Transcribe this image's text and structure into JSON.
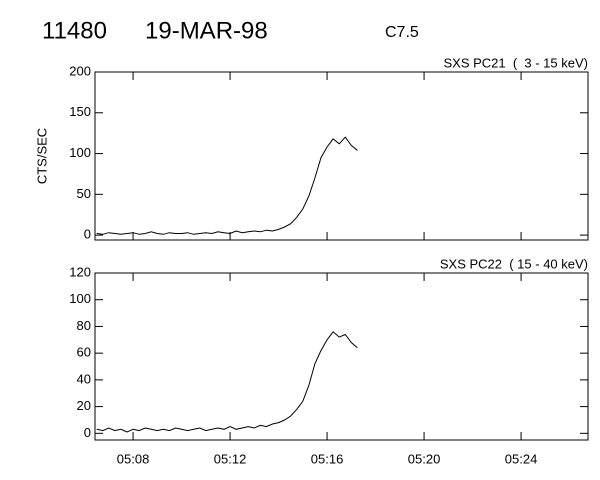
{
  "header": {
    "id": "11480",
    "date": "19-MAR-98",
    "class": "C7.5"
  },
  "chart_data": [
    {
      "type": "line",
      "title": "SXS PC21  (  3 - 15 keV)",
      "y_label": "CTS/SEC",
      "color": "#000000",
      "x": [
        6.5,
        6.75,
        7,
        7.25,
        7.5,
        7.75,
        8,
        8.25,
        8.5,
        8.75,
        9,
        9.25,
        9.5,
        9.75,
        10,
        10.25,
        10.5,
        10.75,
        11,
        11.25,
        11.5,
        11.75,
        12,
        12.25,
        12.5,
        12.75,
        13,
        13.25,
        13.5,
        13.75,
        14,
        14.25,
        14.5,
        14.75,
        15,
        15.25,
        15.5,
        15.75,
        16,
        16.25,
        16.5,
        16.75,
        17,
        17.25
      ],
      "values": [
        2,
        1,
        3,
        2,
        1,
        2,
        3,
        1,
        2,
        4,
        2,
        1,
        3,
        2,
        2,
        3,
        1,
        2,
        3,
        2,
        4,
        3,
        2,
        5,
        3,
        4,
        5,
        4,
        6,
        5,
        7,
        10,
        14,
        22,
        32,
        48,
        70,
        95,
        108,
        118,
        112,
        120,
        110,
        104
      ],
      "xlim": [
        6.43,
        26.76
      ],
      "xticks": [
        8,
        12,
        16,
        20,
        24
      ],
      "ylim": [
        -6,
        200
      ],
      "yticks": [
        0,
        50,
        100,
        150,
        200
      ]
    },
    {
      "type": "line",
      "title": "SXS PC22  ( 15 - 40 keV)",
      "color": "#000000",
      "x": [
        6.5,
        6.75,
        7,
        7.25,
        7.5,
        7.75,
        8,
        8.25,
        8.5,
        8.75,
        9,
        9.25,
        9.5,
        9.75,
        10,
        10.25,
        10.5,
        10.75,
        11,
        11.25,
        11.5,
        11.75,
        12,
        12.25,
        12.5,
        12.75,
        13,
        13.25,
        13.5,
        13.75,
        14,
        14.25,
        14.5,
        14.75,
        15,
        15.25,
        15.5,
        15.75,
        16,
        16.25,
        16.5,
        16.75,
        17,
        17.25
      ],
      "values": [
        3,
        2,
        4,
        2,
        3,
        1,
        3,
        2,
        4,
        3,
        2,
        3,
        2,
        4,
        3,
        2,
        3,
        4,
        2,
        3,
        4,
        3,
        5,
        3,
        4,
        5,
        4,
        6,
        5,
        7,
        8,
        10,
        13,
        18,
        24,
        36,
        52,
        62,
        70,
        76,
        72,
        74,
        68,
        64
      ],
      "xlim": [
        6.43,
        26.76
      ],
      "xticks": [
        {
          "value": 8,
          "label": "05:08"
        },
        {
          "value": 12,
          "label": "05:12"
        },
        {
          "value": 16,
          "label": "05:16"
        },
        {
          "value": 20,
          "label": "05:20"
        },
        {
          "value": 24,
          "label": "05:24"
        }
      ],
      "ylim": [
        -5,
        120
      ],
      "yticks": [
        0,
        20,
        40,
        60,
        80,
        100,
        120
      ]
    }
  ]
}
